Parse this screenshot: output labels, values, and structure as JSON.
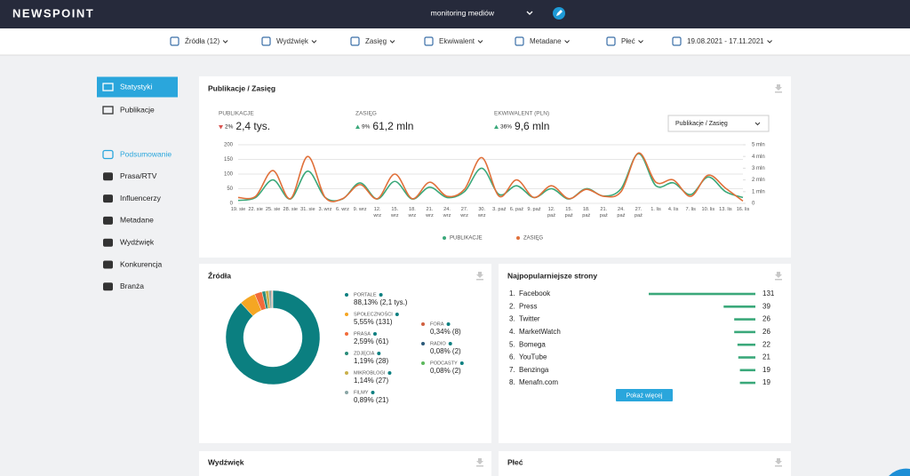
{
  "header": {
    "logo": "NEWSPOINT",
    "project": "monitoring mediów"
  },
  "filters": [
    "Źródła (12)",
    "Wydźwięk",
    "Zasięg",
    "Ekwiwalent",
    "Metadane",
    "Płeć",
    "19.08.2021 - 17.11.2021"
  ],
  "sidebar": {
    "top": [
      "Statystyki",
      "Publikacje"
    ],
    "sections": [
      "Podsumowanie",
      "Prasa/RTV",
      "Influencerzy",
      "Metadane",
      "Wydźwięk",
      "Konkurencja",
      "Branża"
    ],
    "active": 0,
    "highlighted": 0
  },
  "kpis": [
    {
      "label": "PUBLIKACJE",
      "change": "2%",
      "direction": "down",
      "value": "2,4 tys."
    },
    {
      "label": "ZASIĘG",
      "change": "9%",
      "direction": "up",
      "value": "61,2 mln"
    },
    {
      "label": "EKWIWALENT (PLN)",
      "change": "36%",
      "direction": "up",
      "value": "9,6 mln"
    }
  ],
  "dropdown": "Publikacje / Zasięg",
  "bottom_panels": [
    "Wydźwięk",
    "Płeć"
  ],
  "chart_data": [
    {
      "type": "line",
      "title": "Publikacje / Zasięg",
      "categories": [
        "19. sie",
        "22. sie",
        "25. sie",
        "28. sie",
        "31. sie",
        "3. wrz",
        "6. wrz",
        "9. wrz",
        "12. wrz",
        "15. wrz",
        "18. wrz",
        "21. wrz",
        "24. wrz",
        "27. wrz",
        "30. wrz",
        "3. paź",
        "6. paź",
        "9. paź",
        "12. paź",
        "15. paź",
        "18. paź",
        "21. paź",
        "24. paź",
        "27. paź",
        "1. lis",
        "4. lis",
        "7. lis",
        "10. lis",
        "13. lis",
        "16. lis"
      ],
      "series": [
        {
          "name": "PUBLIKACJE",
          "color": "#3aa87a",
          "values": [
            10,
            20,
            80,
            15,
            110,
            20,
            15,
            70,
            15,
            75,
            15,
            55,
            20,
            40,
            120,
            30,
            60,
            20,
            50,
            15,
            50,
            25,
            50,
            170,
            60,
            70,
            30,
            90,
            40,
            20
          ]
        },
        {
          "name": "ZASIĘG",
          "color": "#e0703a",
          "axis": "y2",
          "values": [
            0.5,
            0.6,
            2.8,
            0.4,
            4.0,
            0.5,
            0.4,
            1.6,
            0.4,
            2.5,
            0.4,
            1.8,
            0.6,
            1.2,
            3.9,
            0.6,
            2.0,
            0.5,
            1.5,
            0.4,
            1.2,
            0.6,
            1.0,
            4.3,
            1.8,
            2.0,
            0.6,
            2.4,
            1.3,
            0.2
          ]
        }
      ],
      "ylim": [
        0,
        200
      ],
      "yticks": [
        0,
        50,
        100,
        150,
        200
      ],
      "y2lim": [
        0,
        5
      ],
      "y2ticks": [
        0,
        {
          "value": 1,
          "label": "1 mln"
        },
        {
          "value": 2,
          "label": "2 mln"
        },
        {
          "value": 3,
          "label": "3 mln"
        },
        {
          "value": 4,
          "label": "4 mln"
        },
        {
          "value": 5,
          "label": "5 mln"
        }
      ],
      "grid": true
    },
    {
      "type": "pie",
      "donut": true,
      "title": "Źródła",
      "categories": [
        "PORTALE",
        "SPOŁECZNOŚCI",
        "PRASA",
        "ZDJĘCIA",
        "MIKROBLOGI",
        "FILMY",
        "FORA",
        "RADIO",
        "PODCASTY"
      ],
      "values": [
        88.13,
        5.55,
        2.59,
        1.19,
        1.14,
        0.89,
        0.34,
        0.08,
        0.08
      ],
      "value_labels": [
        "88,13% (2,1 tys.)",
        "5,55% (131)",
        "2,59% (61)",
        "1,19% (28)",
        "1,14% (27)",
        "0,89% (21)",
        "0,34% (8)",
        "0,08% (2)",
        "0,08% (2)"
      ],
      "colors": [
        "#0b7f80",
        "#f5a623",
        "#f26b3a",
        "#2a8c7a",
        "#c9b04a",
        "#8aa6a6",
        "#d06040",
        "#2c5a7a",
        "#5cb85c"
      ]
    },
    {
      "type": "bar",
      "orientation": "horizontal",
      "title": "Najpopularniejsze strony",
      "ranks": [
        "1.",
        "2.",
        "3.",
        "4.",
        "5.",
        "6.",
        "7.",
        "8."
      ],
      "categories": [
        "Facebook",
        "Press",
        "Twitter",
        "MarketWatch",
        "Bomega",
        "YouTube",
        "Benzinga",
        "Menafn.com"
      ],
      "values": [
        131,
        39,
        26,
        26,
        22,
        21,
        19,
        19
      ],
      "color": "#3aa87a",
      "more": "Pokaż więcej"
    }
  ]
}
